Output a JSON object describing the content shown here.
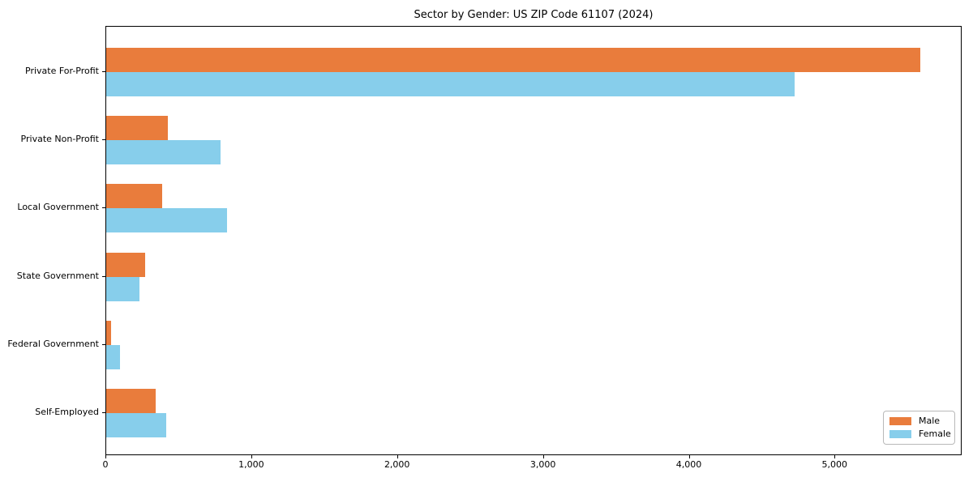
{
  "title": "Sector by Gender: US ZIP Code 61107 (2024)",
  "chart_data": {
    "type": "bar",
    "orientation": "horizontal",
    "title": "Sector by Gender: US ZIP Code 61107 (2024)",
    "categories": [
      "Private For-Profit",
      "Private Non-Profit",
      "Local Government",
      "State Government",
      "Federal Government",
      "Self-Employed"
    ],
    "series": [
      {
        "name": "Male",
        "color": "#e97c3c",
        "values": [
          5580,
          425,
          385,
          265,
          35,
          340
        ]
      },
      {
        "name": "Female",
        "color": "#87ceeb",
        "values": [
          4720,
          785,
          830,
          225,
          95,
          410
        ]
      }
    ],
    "xlabel": "",
    "ylabel": "",
    "xlim": [
      0,
      5860
    ],
    "x_ticks": [
      {
        "value": 0,
        "label": "0"
      },
      {
        "value": 1000,
        "label": "1,000"
      },
      {
        "value": 2000,
        "label": "2,000"
      },
      {
        "value": 3000,
        "label": "3,000"
      },
      {
        "value": 4000,
        "label": "4,000"
      },
      {
        "value": 5000,
        "label": "5,000"
      }
    ],
    "grid": false,
    "legend_position": "lower right",
    "plot_background": "#ffffff",
    "axis_color": "#000000"
  }
}
